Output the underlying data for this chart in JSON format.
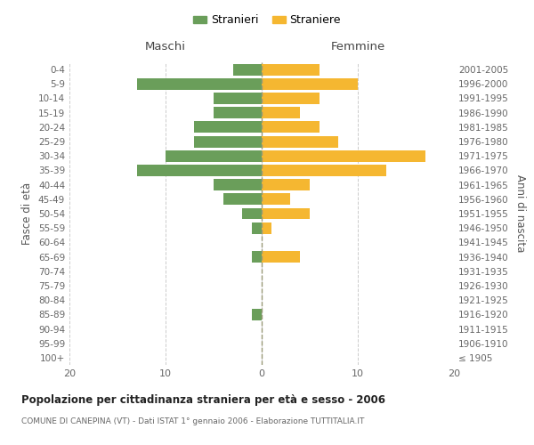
{
  "age_groups": [
    "100+",
    "95-99",
    "90-94",
    "85-89",
    "80-84",
    "75-79",
    "70-74",
    "65-69",
    "60-64",
    "55-59",
    "50-54",
    "45-49",
    "40-44",
    "35-39",
    "30-34",
    "25-29",
    "20-24",
    "15-19",
    "10-14",
    "5-9",
    "0-4"
  ],
  "birth_years": [
    "≤ 1905",
    "1906-1910",
    "1911-1915",
    "1916-1920",
    "1921-1925",
    "1926-1930",
    "1931-1935",
    "1936-1940",
    "1941-1945",
    "1946-1950",
    "1951-1955",
    "1956-1960",
    "1961-1965",
    "1966-1970",
    "1971-1975",
    "1976-1980",
    "1981-1985",
    "1986-1990",
    "1991-1995",
    "1996-2000",
    "2001-2005"
  ],
  "maschi": [
    0,
    0,
    0,
    1,
    0,
    0,
    0,
    1,
    0,
    1,
    2,
    4,
    5,
    13,
    10,
    7,
    7,
    5,
    5,
    13,
    3
  ],
  "femmine": [
    0,
    0,
    0,
    0,
    0,
    0,
    0,
    4,
    0,
    1,
    5,
    3,
    5,
    13,
    17,
    8,
    6,
    4,
    6,
    10,
    6
  ],
  "maschi_color": "#6a9e5a",
  "femmine_color": "#f5b731",
  "background_color": "#ffffff",
  "grid_color": "#cccccc",
  "title": "Popolazione per cittadinanza straniera per età e sesso - 2006",
  "subtitle": "COMUNE DI CANEPINA (VT) - Dati ISTAT 1° gennaio 2006 - Elaborazione TUTTITALIA.IT",
  "xlabel_left": "Maschi",
  "xlabel_right": "Femmine",
  "ylabel_left": "Fasce di età",
  "ylabel_right": "Anni di nascita",
  "legend_stranieri": "Stranieri",
  "legend_straniere": "Straniere",
  "xlim": 20,
  "bar_height": 0.8
}
